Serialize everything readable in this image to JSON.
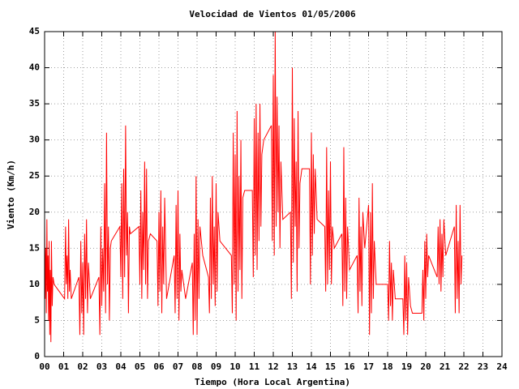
{
  "chart_data": {
    "type": "line",
    "title": "Velocidad de Vientos 01/05/2006",
    "xlabel": "Tiempo (Hora Local Argentina)",
    "ylabel": "Viento (Km/h)",
    "color": "#ff0000",
    "grid": true,
    "xlim": [
      0,
      24
    ],
    "ylim": [
      0,
      45
    ],
    "xticks": [
      {
        "value": 0,
        "label": "00"
      },
      {
        "value": 1,
        "label": "01"
      },
      {
        "value": 2,
        "label": "02"
      },
      {
        "value": 3,
        "label": "03"
      },
      {
        "value": 4,
        "label": "04"
      },
      {
        "value": 5,
        "label": "05"
      },
      {
        "value": 6,
        "label": "06"
      },
      {
        "value": 7,
        "label": "07"
      },
      {
        "value": 8,
        "label": "08"
      },
      {
        "value": 9,
        "label": "09"
      },
      10,
      11,
      12,
      13,
      14,
      15,
      16,
      17,
      18,
      19,
      20,
      21,
      22,
      23,
      24
    ],
    "yticks": [
      0,
      5,
      10,
      15,
      20,
      25,
      30,
      35,
      40,
      45
    ],
    "x": [
      0.0,
      0.03,
      0.06,
      0.09,
      0.12,
      0.15,
      0.18,
      0.21,
      0.24,
      0.27,
      0.3,
      0.33,
      0.36,
      0.4,
      0.44,
      0.5,
      1.05,
      1.1,
      1.14,
      1.18,
      1.22,
      1.26,
      1.3,
      1.34,
      1.4,
      1.8,
      1.85,
      1.9,
      1.95,
      2.0,
      2.05,
      2.1,
      2.15,
      2.2,
      2.25,
      2.3,
      2.4,
      2.85,
      2.9,
      2.95,
      3.0,
      3.05,
      3.1,
      3.15,
      3.2,
      3.25,
      3.3,
      3.35,
      3.4,
      3.45,
      3.5,
      3.95,
      4.0,
      4.05,
      4.1,
      4.15,
      4.2,
      4.25,
      4.3,
      4.35,
      4.4,
      4.45,
      4.5,
      4.95,
      5.0,
      5.05,
      5.1,
      5.15,
      5.2,
      5.25,
      5.3,
      5.35,
      5.4,
      5.45,
      5.55,
      5.9,
      5.95,
      6.0,
      6.05,
      6.1,
      6.15,
      6.2,
      6.25,
      6.3,
      6.4,
      6.8,
      6.85,
      6.9,
      6.95,
      7.0,
      7.05,
      7.1,
      7.15,
      7.2,
      7.4,
      7.75,
      7.8,
      7.85,
      7.9,
      7.95,
      8.0,
      8.05,
      8.1,
      8.15,
      8.3,
      8.6,
      8.65,
      8.7,
      8.75,
      8.8,
      8.85,
      8.9,
      8.95,
      9.0,
      9.05,
      9.1,
      9.2,
      9.8,
      9.85,
      9.9,
      9.95,
      10.0,
      10.05,
      10.1,
      10.15,
      10.2,
      10.25,
      10.3,
      10.35,
      10.4,
      10.5,
      10.9,
      10.95,
      11.0,
      11.05,
      11.1,
      11.15,
      11.2,
      11.25,
      11.3,
      11.35,
      11.4,
      11.5,
      11.9,
      11.95,
      12.0,
      12.05,
      12.1,
      12.15,
      12.2,
      12.25,
      12.3,
      12.35,
      12.4,
      12.5,
      12.9,
      12.95,
      13.0,
      13.05,
      13.1,
      13.15,
      13.2,
      13.25,
      13.3,
      13.35,
      13.4,
      13.5,
      13.9,
      13.95,
      14.0,
      14.05,
      14.1,
      14.15,
      14.2,
      14.3,
      14.7,
      14.75,
      14.8,
      14.85,
      14.9,
      14.95,
      15.0,
      15.05,
      15.1,
      15.2,
      15.6,
      15.65,
      15.7,
      15.75,
      15.8,
      15.85,
      15.9,
      16.0,
      16.4,
      16.45,
      16.5,
      16.55,
      16.6,
      16.65,
      16.7,
      16.8,
      17.0,
      17.05,
      17.1,
      17.15,
      17.2,
      17.25,
      17.3,
      17.4,
      18.0,
      18.05,
      18.1,
      18.15,
      18.2,
      18.25,
      18.3,
      18.4,
      18.8,
      18.85,
      18.9,
      18.95,
      19.0,
      19.05,
      19.1,
      19.2,
      19.3,
      19.8,
      19.85,
      19.9,
      19.95,
      20.0,
      20.05,
      20.1,
      20.15,
      20.3,
      20.6,
      20.65,
      20.7,
      20.75,
      20.8,
      20.85,
      20.9,
      20.95,
      21.05,
      21.5,
      21.55,
      21.6,
      21.65,
      21.7,
      21.75,
      21.8,
      21.85,
      21.9
    ],
    "values": [
      19,
      8,
      15,
      6,
      19,
      9,
      14,
      5,
      16,
      3,
      12,
      2,
      16,
      7,
      11,
      10,
      8,
      18,
      10,
      14,
      8,
      19,
      9,
      12,
      8,
      11,
      3,
      16,
      6,
      13,
      3,
      17,
      8,
      19,
      6,
      13,
      8,
      11,
      3,
      18,
      7,
      15,
      9,
      24,
      6,
      31,
      10,
      18,
      5,
      15,
      16,
      18,
      11,
      24,
      8,
      26,
      11,
      32,
      14,
      20,
      6,
      18,
      17,
      18,
      10,
      23,
      8,
      20,
      12,
      27,
      10,
      26,
      8,
      16,
      17,
      16,
      7,
      20,
      9,
      23,
      6,
      18,
      10,
      22,
      8,
      14,
      6,
      21,
      8,
      23,
      5,
      17,
      9,
      12,
      8,
      13,
      3,
      17,
      5,
      25,
      3,
      19,
      8,
      18,
      14,
      11,
      6,
      22,
      8,
      25,
      10,
      18,
      7,
      24,
      9,
      20,
      16,
      14,
      6,
      31,
      10,
      28,
      5,
      34,
      9,
      25,
      12,
      30,
      8,
      22,
      23,
      23,
      11,
      33,
      14,
      35,
      12,
      31,
      16,
      35,
      18,
      28,
      30,
      32,
      16,
      39,
      14,
      45,
      18,
      36,
      20,
      32,
      15,
      27,
      19,
      20,
      8,
      40,
      13,
      33,
      18,
      27,
      9,
      34,
      15,
      24,
      26,
      26,
      10,
      31,
      14,
      28,
      17,
      26,
      19,
      18,
      9,
      29,
      10,
      23,
      12,
      27,
      10,
      18,
      15,
      17,
      7,
      29,
      9,
      22,
      8,
      18,
      12,
      14,
      6,
      22,
      9,
      18,
      7,
      20,
      15,
      21,
      3,
      20,
      6,
      24,
      8,
      16,
      10,
      10,
      5,
      16,
      7,
      13,
      5,
      12,
      8,
      8,
      3,
      14,
      5,
      13,
      3,
      11,
      7,
      6,
      6,
      12,
      5,
      16,
      8,
      17,
      11,
      14,
      13,
      11,
      18,
      10,
      19,
      9,
      17,
      11,
      19,
      14,
      18,
      6,
      21,
      8,
      16,
      6,
      21,
      10,
      14
    ]
  }
}
